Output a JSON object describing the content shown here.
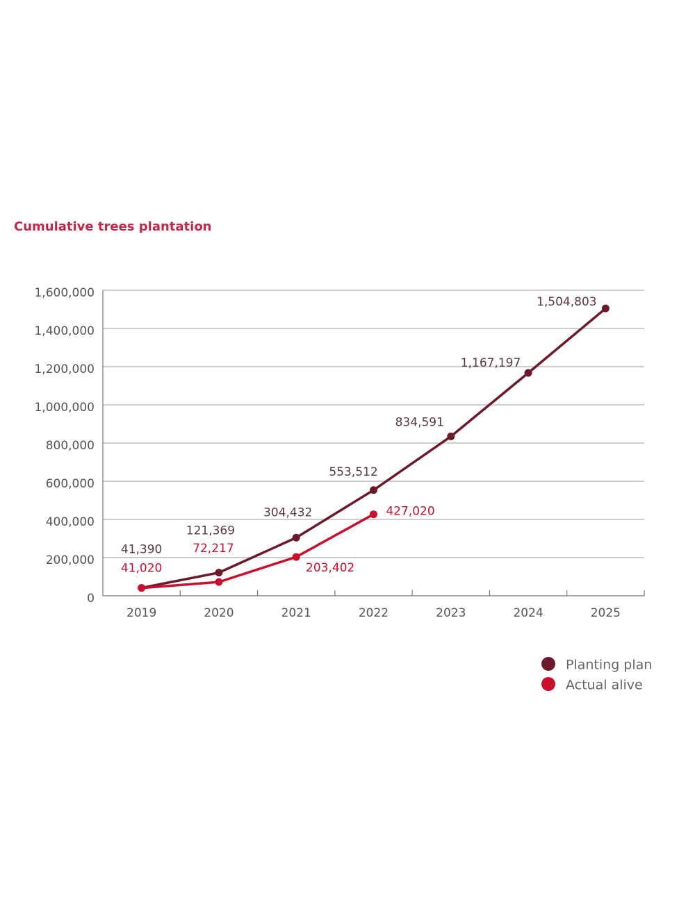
{
  "chart_data": {
    "type": "line",
    "title": "Cumulative trees plantation",
    "categories": [
      "2019",
      "2020",
      "2021",
      "2022",
      "2023",
      "2024",
      "2025"
    ],
    "series": [
      {
        "name": "Planting plan",
        "color": "#6b1a2a",
        "values": [
          41390,
          121369,
          304432,
          553512,
          834591,
          1167197,
          1504803
        ],
        "value_labels": [
          "41,390",
          "121,369",
          "304,432",
          "553,512",
          "834,591",
          "1,167,197",
          "1,504,803"
        ]
      },
      {
        "name": "Actual alive",
        "color": "#c8102e",
        "values": [
          41020,
          72217,
          203402,
          427020,
          null,
          null,
          null
        ],
        "value_labels": [
          "41,020",
          "72,217",
          "203,402",
          "427,020",
          null,
          null,
          null
        ]
      }
    ],
    "ylim": [
      0,
      1600000
    ],
    "yticks": [
      0,
      {
        "value": 200000,
        "label": "200,000"
      },
      {
        "value": 400000,
        "label": "400,000"
      },
      {
        "value": 600000,
        "label": "600,000"
      },
      {
        "value": 800000,
        "label": "800,000"
      },
      {
        "value": 1000000,
        "label": "1,000,000"
      },
      {
        "value": 1200000,
        "label": "1,200,000"
      },
      {
        "value": 1400000,
        "label": "1,400,000"
      },
      {
        "value": 1600000,
        "label": "1,600,000"
      }
    ],
    "grid": true,
    "legend": "bottom-right"
  }
}
